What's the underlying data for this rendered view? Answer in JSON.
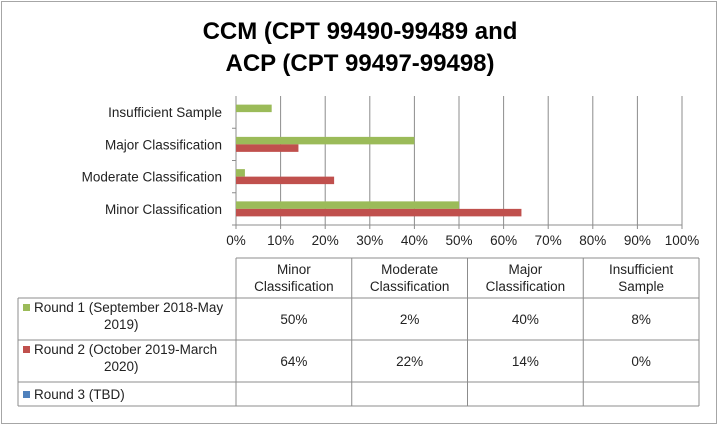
{
  "chart_data": {
    "type": "bar",
    "orientation": "horizontal",
    "title_lines": [
      "CCM (CPT 99490-99489 and",
      "ACP (CPT 99497-99498)"
    ],
    "categories": [
      "Minor Classification",
      "Moderate Classification",
      "Major Classification",
      "Insufficient Sample"
    ],
    "table_headers": [
      [
        "Minor",
        "Classification"
      ],
      [
        "Moderate",
        "Classification"
      ],
      [
        "Major",
        "Classification"
      ],
      [
        "Insufficient",
        "Sample"
      ]
    ],
    "xlim": [
      0,
      100
    ],
    "xticks": [
      "0%",
      "10%",
      "20%",
      "30%",
      "40%",
      "50%",
      "60%",
      "70%",
      "80%",
      "90%",
      "100%"
    ],
    "grid": true,
    "series": [
      {
        "name_lines": [
          "Round 1 (September 2018-May",
          "2019)"
        ],
        "color": "#9bbb59",
        "values": [
          50,
          2,
          40,
          8
        ],
        "labels": [
          "50%",
          "2%",
          "40%",
          "8%"
        ]
      },
      {
        "name_lines": [
          "Round 2 (October 2019-March",
          "2020)"
        ],
        "color": "#c0504d",
        "values": [
          64,
          22,
          14,
          0
        ],
        "labels": [
          "64%",
          "22%",
          "14%",
          "0%"
        ]
      },
      {
        "name_lines": [
          "Round 3 (TBD)"
        ],
        "color": "#4f81bd",
        "values": [
          null,
          null,
          null,
          null
        ],
        "labels": [
          "",
          "",
          "",
          ""
        ]
      }
    ]
  }
}
